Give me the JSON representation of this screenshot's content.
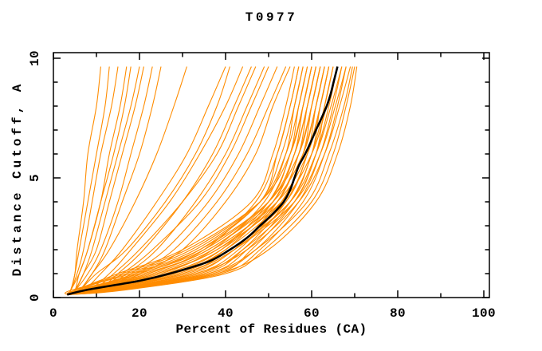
{
  "chart_data": {
    "type": "line",
    "title": "T0977",
    "xlabel": "Percent of Residues (CA)",
    "ylabel": "Distance Cutoff, A",
    "xlim": [
      0,
      101.3
    ],
    "ylim": [
      0,
      10.23
    ],
    "grid": false,
    "x_ticks_major": {
      "values": [
        0,
        20,
        40,
        60,
        80,
        100
      ],
      "labels": [
        "0",
        "20",
        "40",
        "60",
        "80",
        "100"
      ]
    },
    "x_ticks_minor": [
      10,
      30,
      50,
      70,
      90
    ],
    "y_ticks_major": {
      "values": [
        0,
        5,
        10
      ],
      "labels": [
        "0",
        "5",
        "10"
      ]
    },
    "y_ticks_minor": [
      1,
      2,
      3,
      4,
      6,
      7,
      8,
      9
    ],
    "colors": {
      "model_lines": "#ff8c00",
      "highlight_line": "#000000",
      "axes": "#000000",
      "background": "#ffffff"
    },
    "highlight_series": {
      "name": "highlight-model",
      "points_percent_cutoff": [
        [
          3.2,
          0.12
        ],
        [
          8,
          0.33
        ],
        [
          20,
          0.7
        ],
        [
          27,
          1
        ],
        [
          36,
          1.5
        ],
        [
          41,
          2
        ],
        [
          45,
          2.5
        ],
        [
          48,
          3
        ],
        [
          51,
          3.5
        ],
        [
          53.5,
          4
        ],
        [
          55,
          4.5
        ],
        [
          56,
          5
        ],
        [
          57,
          5.5
        ],
        [
          58.5,
          6
        ],
        [
          59.8,
          6.5
        ],
        [
          61,
          7
        ],
        [
          62.3,
          7.5
        ],
        [
          63.5,
          8
        ],
        [
          64.4,
          8.5
        ],
        [
          65.1,
          9
        ],
        [
          66,
          9.65
        ]
      ]
    },
    "model_cutoff_grid": [
      0.12,
      0.3,
      1,
      2,
      4,
      6,
      8,
      9.65
    ],
    "model_curves_percents": [
      [
        3.2,
        4,
        5,
        5.5,
        7,
        8,
        10,
        11
      ],
      [
        3.2,
        4,
        5,
        6,
        8,
        10,
        12,
        13
      ],
      [
        3.2,
        4,
        5.5,
        7,
        9,
        11,
        13.5,
        15
      ],
      [
        3.2,
        5,
        6,
        8,
        11,
        13,
        15.5,
        17
      ],
      [
        3.2,
        4,
        6,
        8,
        11,
        14,
        16.5,
        18
      ],
      [
        3.2,
        5,
        7,
        9,
        12,
        15,
        18,
        20
      ],
      [
        3.2,
        5,
        7,
        10,
        13,
        16,
        19,
        21
      ],
      [
        3.2,
        5,
        8,
        11,
        15,
        18,
        21,
        23
      ],
      [
        3.2,
        6,
        9,
        12,
        16,
        20,
        23,
        25
      ],
      [
        3.2,
        6,
        9,
        13,
        19,
        24,
        28,
        31
      ],
      [
        3.2,
        7,
        11,
        16,
        24,
        31,
        36,
        40
      ],
      [
        3.2,
        6,
        10,
        17,
        26,
        33,
        38,
        41
      ],
      [
        3.2,
        8,
        13,
        18,
        27,
        34,
        40,
        44
      ],
      [
        3.2,
        10,
        15,
        21,
        30,
        37,
        42,
        46
      ],
      [
        3.2,
        9,
        14,
        20,
        30,
        38,
        43,
        47
      ],
      [
        3.2,
        11,
        17,
        24,
        33,
        40,
        45,
        49
      ],
      [
        3.2,
        10,
        16,
        23,
        34,
        41,
        46,
        50
      ],
      [
        3.2,
        12,
        18,
        26,
        36,
        43,
        48,
        52
      ],
      [
        3.2,
        11,
        19,
        28,
        38,
        45,
        50,
        54
      ],
      [
        3.2,
        13,
        20,
        30,
        40,
        47,
        51,
        55
      ],
      [
        3.2,
        5,
        15,
        30,
        46,
        51,
        54,
        56
      ],
      [
        3.2,
        4,
        18,
        33,
        48,
        52,
        55,
        57
      ],
      [
        3.2,
        6,
        22,
        35,
        47,
        52,
        55,
        57
      ],
      [
        3.2,
        5,
        20,
        34,
        48,
        53,
        56,
        58
      ],
      [
        3.2,
        7,
        25,
        37,
        49,
        54,
        56,
        58
      ],
      [
        3.2,
        5,
        17,
        32,
        48,
        54,
        57,
        59
      ],
      [
        3.2,
        8,
        27,
        39,
        50,
        55,
        57,
        59
      ],
      [
        3.2,
        6,
        21,
        36,
        50,
        55,
        58,
        60
      ],
      [
        3.2,
        9,
        29,
        40,
        51,
        56,
        58,
        60
      ],
      [
        3.2,
        5,
        16,
        31,
        48,
        55,
        58,
        60
      ],
      [
        3.2,
        7,
        24,
        38,
        51,
        56,
        59,
        61
      ],
      [
        3.2,
        10,
        31,
        42,
        52,
        57,
        59,
        61
      ],
      [
        3.2,
        6,
        19,
        34,
        50,
        56,
        59,
        61
      ],
      [
        3.2,
        8,
        26,
        39,
        52,
        57,
        60,
        62
      ],
      [
        3.2,
        11,
        33,
        43,
        53,
        58,
        60,
        62
      ],
      [
        3.2,
        6,
        20,
        35,
        50,
        57,
        60,
        62
      ],
      [
        3.2,
        9,
        28,
        40,
        53,
        58,
        61,
        63
      ],
      [
        3.2,
        12,
        35,
        44,
        54,
        59,
        61,
        63
      ],
      [
        3.2,
        7,
        22,
        36,
        51,
        58,
        61,
        63
      ],
      [
        3.2,
        10,
        30,
        41,
        54,
        59,
        62,
        64
      ],
      [
        3.2,
        13,
        36,
        45,
        55,
        60,
        62,
        64
      ],
      [
        3.2,
        7,
        23,
        37,
        52,
        59,
        62,
        64
      ],
      [
        3.2,
        11,
        32,
        42,
        55,
        60,
        63,
        65
      ],
      [
        3.2,
        14,
        38,
        46,
        56,
        61,
        63,
        65
      ],
      [
        3.2,
        8,
        24,
        38,
        53,
        60,
        63.5,
        66
      ],
      [
        3.2,
        12,
        34,
        44,
        56,
        61,
        64,
        66
      ],
      [
        3.2,
        9,
        28,
        41,
        55,
        61,
        64.5,
        67
      ],
      [
        3.2,
        14,
        37,
        47,
        57,
        62,
        65,
        67
      ],
      [
        3.2,
        10,
        30,
        42,
        56,
        62,
        65.5,
        68
      ],
      [
        3.2,
        15,
        39,
        48,
        58,
        63,
        66,
        68
      ],
      [
        3.2,
        11,
        33,
        45,
        57,
        63,
        66.5,
        69
      ],
      [
        3.2,
        13,
        36,
        47,
        59,
        64,
        67.5,
        69.5
      ],
      [
        3.2,
        16,
        40,
        49,
        60,
        65,
        68,
        70
      ],
      [
        3.2,
        14,
        38,
        50,
        61,
        66,
        69,
        70.5
      ]
    ]
  }
}
